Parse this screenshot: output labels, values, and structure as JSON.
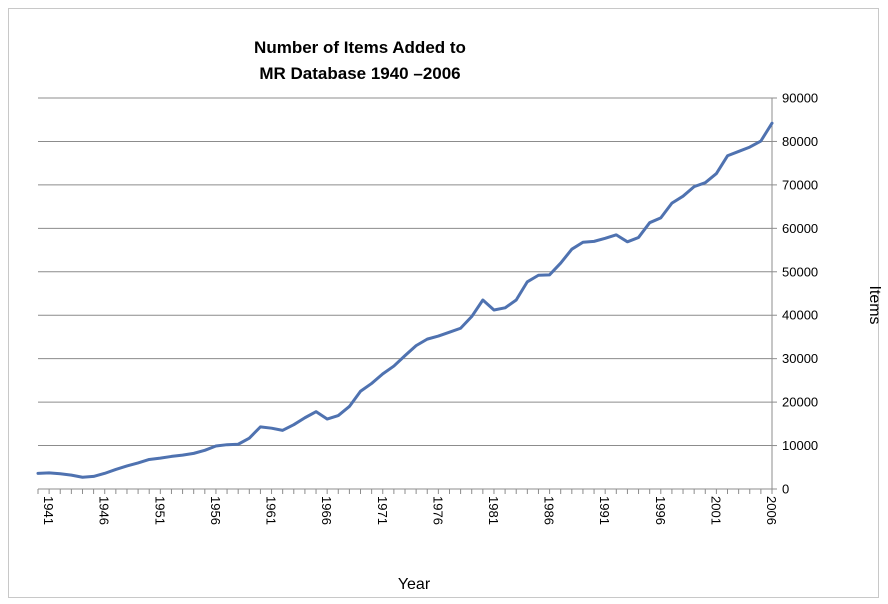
{
  "chart_data": {
    "type": "line",
    "title_lines": [
      "Number of Items Added to",
      "MR Database 1940 –2006"
    ],
    "xlabel": "Year",
    "ylabel": "Items",
    "x_tick_labels": [
      "1941",
      "1946",
      "1951",
      "1956",
      "1961",
      "1966",
      "1971",
      "1976",
      "1981",
      "1986",
      "1991",
      "1996",
      "2001",
      "2006"
    ],
    "y_tick_labels": [
      "0",
      "10000",
      "20000",
      "30000",
      "40000",
      "50000",
      "60000",
      "70000",
      "80000",
      "90000"
    ],
    "ylim": [
      0,
      90000
    ],
    "xlim": [
      1940,
      2006
    ],
    "grid": "horizontal",
    "line_color": "#4f72b0",
    "series": [
      {
        "x": [
          1940,
          1941,
          1942,
          1943,
          1944,
          1945,
          1946,
          1947,
          1948,
          1949,
          1950,
          1951,
          1952,
          1953,
          1954,
          1955,
          1956,
          1957,
          1958,
          1959,
          1960,
          1961,
          1962,
          1963,
          1964,
          1965,
          1966,
          1967,
          1968,
          1969,
          1970,
          1971,
          1972,
          1973,
          1974,
          1975,
          1976,
          1977,
          1978,
          1979,
          1980,
          1981,
          1982,
          1983,
          1984,
          1985,
          1986,
          1987,
          1988,
          1989,
          1990,
          1991,
          1992,
          1993,
          1994,
          1995,
          1996,
          1997,
          1998,
          1999,
          2000,
          2001,
          2002,
          2003,
          2004,
          2005,
          2006
        ],
        "values": [
          3600,
          3700,
          3500,
          3200,
          2700,
          2900,
          3600,
          4500,
          5300,
          6000,
          6800,
          7100,
          7500,
          7800,
          8200,
          8900,
          9900,
          10200,
          10300,
          11700,
          14300,
          14000,
          13500,
          14800,
          16400,
          17800,
          16100,
          16900,
          19000,
          22500,
          24300,
          26500,
          28300,
          30700,
          33000,
          34500,
          35200,
          36100,
          37000,
          39700,
          43500,
          41200,
          41700,
          43500,
          47700,
          49200,
          49300,
          52000,
          55200,
          56800,
          57000,
          57700,
          58500,
          56900,
          57900,
          61300,
          62400,
          65800,
          67400,
          69600,
          70500,
          72600,
          76700,
          77700,
          78700,
          80100,
          84200
        ]
      }
    ]
  }
}
